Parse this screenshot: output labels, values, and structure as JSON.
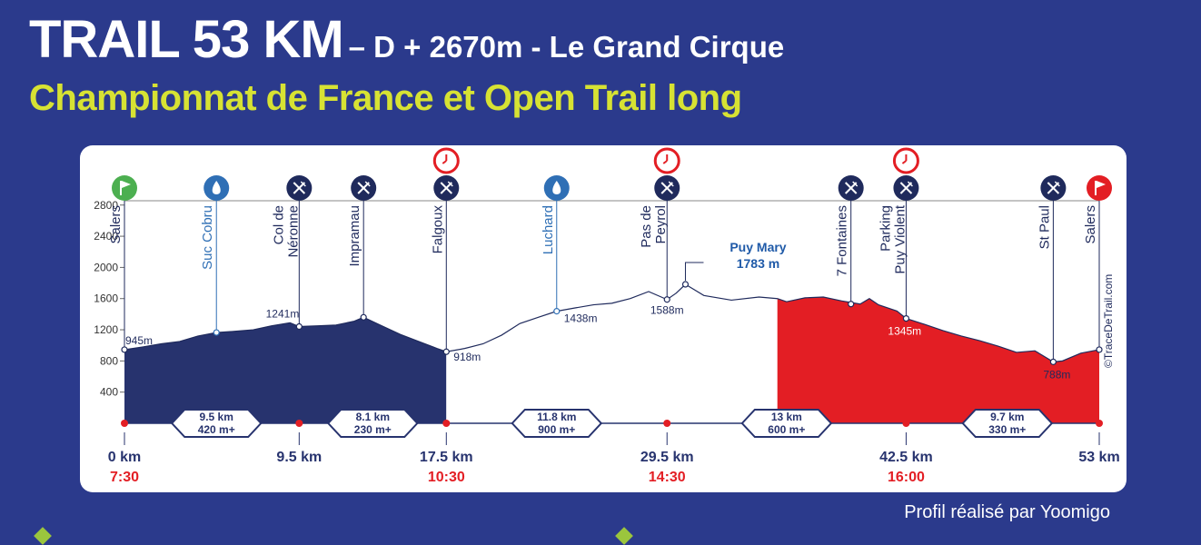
{
  "header": {
    "title_big": "TRAIL 53 KM",
    "title_small": "– D + 2670m - Le Grand Cirque",
    "subtitle": "Championnat de France et Open Trail long"
  },
  "credit": "Profil réalisé par Yoomigo",
  "colors": {
    "background": "#2b3a8c",
    "navy_fill": "#27336e",
    "red_fill": "#e31e24",
    "subtitle_yellow": "#d7e233",
    "water_blue": "#2f6fb5",
    "start_green": "#4caf50"
  },
  "chart_data": {
    "type": "area",
    "title": "TRAIL 53 KM",
    "xlabel": "",
    "ylabel": "",
    "xlim": [
      0,
      53
    ],
    "ylim": [
      0,
      3000
    ],
    "yticks": [
      "400",
      "800",
      "1200",
      "1600",
      "2000",
      "2400",
      "2800"
    ],
    "grid": false,
    "profile": [
      {
        "x": 0,
        "y": 945
      },
      {
        "x": 1,
        "y": 980
      },
      {
        "x": 2,
        "y": 1020
      },
      {
        "x": 3,
        "y": 1050
      },
      {
        "x": 4,
        "y": 1120
      },
      {
        "x": 5,
        "y": 1165
      },
      {
        "x": 6,
        "y": 1180
      },
      {
        "x": 7,
        "y": 1200
      },
      {
        "x": 8,
        "y": 1250
      },
      {
        "x": 9,
        "y": 1290
      },
      {
        "x": 9.5,
        "y": 1241
      },
      {
        "x": 10.5,
        "y": 1250
      },
      {
        "x": 11.5,
        "y": 1260
      },
      {
        "x": 12.5,
        "y": 1310
      },
      {
        "x": 13,
        "y": 1360
      },
      {
        "x": 14,
        "y": 1250
      },
      {
        "x": 15,
        "y": 1140
      },
      {
        "x": 16,
        "y": 1050
      },
      {
        "x": 17,
        "y": 960
      },
      {
        "x": 17.5,
        "y": 918
      },
      {
        "x": 18.5,
        "y": 960
      },
      {
        "x": 19.5,
        "y": 1020
      },
      {
        "x": 20.5,
        "y": 1130
      },
      {
        "x": 21.5,
        "y": 1280
      },
      {
        "x": 22.5,
        "y": 1360
      },
      {
        "x": 23.5,
        "y": 1438
      },
      {
        "x": 24.5,
        "y": 1480
      },
      {
        "x": 25.5,
        "y": 1520
      },
      {
        "x": 26.5,
        "y": 1540
      },
      {
        "x": 27.5,
        "y": 1600
      },
      {
        "x": 28.5,
        "y": 1690
      },
      {
        "x": 29.5,
        "y": 1588
      },
      {
        "x": 30,
        "y": 1670
      },
      {
        "x": 30.5,
        "y": 1783
      },
      {
        "x": 31.5,
        "y": 1640
      },
      {
        "x": 33,
        "y": 1580
      },
      {
        "x": 34.5,
        "y": 1620
      },
      {
        "x": 35.5,
        "y": 1600
      },
      {
        "x": 36,
        "y": 1560
      },
      {
        "x": 37,
        "y": 1610
      },
      {
        "x": 38,
        "y": 1620
      },
      {
        "x": 39,
        "y": 1570
      },
      {
        "x": 40,
        "y": 1530
      },
      {
        "x": 40.5,
        "y": 1600
      },
      {
        "x": 41,
        "y": 1520
      },
      {
        "x": 42,
        "y": 1440
      },
      {
        "x": 42.5,
        "y": 1345
      },
      {
        "x": 43.5,
        "y": 1270
      },
      {
        "x": 44.5,
        "y": 1190
      },
      {
        "x": 45.5,
        "y": 1120
      },
      {
        "x": 46.5,
        "y": 1060
      },
      {
        "x": 47.5,
        "y": 990
      },
      {
        "x": 48.5,
        "y": 910
      },
      {
        "x": 49.5,
        "y": 930
      },
      {
        "x": 50.5,
        "y": 788
      },
      {
        "x": 51,
        "y": 800
      },
      {
        "x": 52,
        "y": 900
      },
      {
        "x": 53,
        "y": 945
      }
    ],
    "segments": [
      {
        "from": 0,
        "to": 17.5,
        "color": "#27336e"
      },
      {
        "from": 17.5,
        "to": 35.5,
        "color": "#ffffff"
      },
      {
        "from": 35.5,
        "to": 53,
        "color": "#e31e24"
      }
    ],
    "km_markers": [
      {
        "x": 0,
        "label": "0 km",
        "time": "7:30"
      },
      {
        "x": 9.5,
        "label": "9.5 km",
        "time": ""
      },
      {
        "x": 17.5,
        "label": "17.5 km",
        "time": "10:30"
      },
      {
        "x": 29.5,
        "label": "29.5 km",
        "time": "14:30"
      },
      {
        "x": 42.5,
        "label": "42.5 km",
        "time": "16:00"
      },
      {
        "x": 53,
        "label": "53 km",
        "time": ""
      }
    ],
    "section_badges": [
      {
        "x": 5,
        "dist": "9.5 km",
        "gain": "420 m+"
      },
      {
        "x": 13.5,
        "dist": "8.1 km",
        "gain": "230 m+"
      },
      {
        "x": 23.5,
        "dist": "11.8 km",
        "gain": "900 m+"
      },
      {
        "x": 36,
        "dist": "13 km",
        "gain": "600 m+"
      },
      {
        "x": 48,
        "dist": "9.7 km",
        "gain": "330 m+"
      }
    ],
    "waypoints": [
      {
        "x": 0,
        "y": 945,
        "name": "Salers",
        "icon": "flag-start-icon",
        "clock": false,
        "alt": "945m"
      },
      {
        "x": 5,
        "y": 1165,
        "name": "Suc Cobru",
        "icon": "water-icon",
        "clock": false,
        "alt": ""
      },
      {
        "x": 9.5,
        "y": 1241,
        "name": "Col de\nNéronne",
        "icon": "food-icon",
        "clock": false,
        "alt": "1241m"
      },
      {
        "x": 13,
        "y": 1360,
        "name": "Impramau",
        "icon": "food-icon",
        "clock": false,
        "alt": ""
      },
      {
        "x": 17.5,
        "y": 918,
        "name": "Falgoux",
        "icon": "food-icon",
        "clock": true,
        "alt": "918m"
      },
      {
        "x": 23.5,
        "y": 1438,
        "name": "Luchard",
        "icon": "water-icon",
        "clock": false,
        "alt": "1438m"
      },
      {
        "x": 29.5,
        "y": 1588,
        "name": "Pas de\nPeyrol",
        "icon": "food-icon",
        "clock": true,
        "alt": "1588m"
      },
      {
        "x": 39.5,
        "y": 1530,
        "name": "7 Fontaines",
        "icon": "food-icon",
        "clock": false,
        "alt": ""
      },
      {
        "x": 42.5,
        "y": 1345,
        "name": "Parking\nPuy Violent",
        "icon": "food-icon",
        "clock": true,
        "alt": "1345m"
      },
      {
        "x": 50.5,
        "y": 788,
        "name": "St Paul",
        "icon": "food-icon",
        "clock": false,
        "alt": "788m"
      },
      {
        "x": 53,
        "y": 945,
        "name": "Salers",
        "icon": "flag-finish-icon",
        "clock": false,
        "alt": ""
      }
    ],
    "peak": {
      "x": 30.5,
      "y": 1783,
      "name": "Puy Mary",
      "alt": "1783 m"
    },
    "watermark": "©TraceDeTrail.com"
  }
}
